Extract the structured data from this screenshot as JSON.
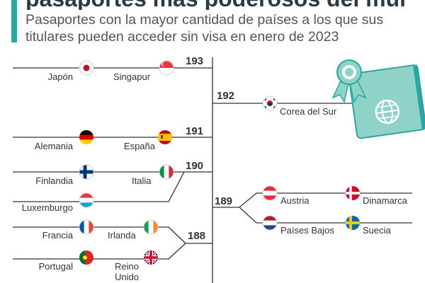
{
  "header": {
    "title": "pasaportes más poderosos del mundo",
    "subtitle": "Pasaportes con la mayor cantidad de países a los que sus titulares pueden acceder sin visa en enero de 2023"
  },
  "colors": {
    "accent": "#2aa7a0",
    "line": "#333333",
    "passport": "#8fd3c8",
    "passport_dark": "#2aa7a0"
  },
  "chart_data": {
    "type": "table",
    "title": "",
    "subtitle": "Pasaportes con la mayor cantidad de países a los que sus titulares pueden acceder sin visa en enero de 2023",
    "groups": [
      {
        "value": 193,
        "countries": [
          "Japón",
          "Singapur"
        ]
      },
      {
        "value": 192,
        "countries": [
          "Corea del Sur"
        ]
      },
      {
        "value": 191,
        "countries": [
          "Alemania",
          "España"
        ]
      },
      {
        "value": 190,
        "countries": [
          "Finlandia",
          "Italia",
          "Luxemburgo"
        ]
      },
      {
        "value": 189,
        "countries": [
          "Austria",
          "Dinamarca",
          "Países Bajos",
          "Suecia"
        ]
      },
      {
        "value": 188,
        "countries": [
          "Francia",
          "Irlanda",
          "Portugal",
          "Reino Unido"
        ]
      }
    ]
  },
  "labels": {
    "japon": "Japón",
    "singapur": "Singapur",
    "corea": "Corea del Sur",
    "alemania": "Alemania",
    "espana": "España",
    "finlandia": "Finlandia",
    "italia": "Italia",
    "luxemburgo": "Luxemburgo",
    "austria": "Austria",
    "dinamarca": "Dinamarca",
    "paises_bajos": "Países Bajos",
    "suecia": "Suecia",
    "francia": "Francia",
    "irlanda": "Irlanda",
    "portugal": "Portugal",
    "reino_unido_1": "Reino",
    "reino_unido_2": "Unido"
  },
  "values": {
    "v193": "193",
    "v192": "192",
    "v191": "191",
    "v190": "190",
    "v189": "189",
    "v188": "188"
  }
}
